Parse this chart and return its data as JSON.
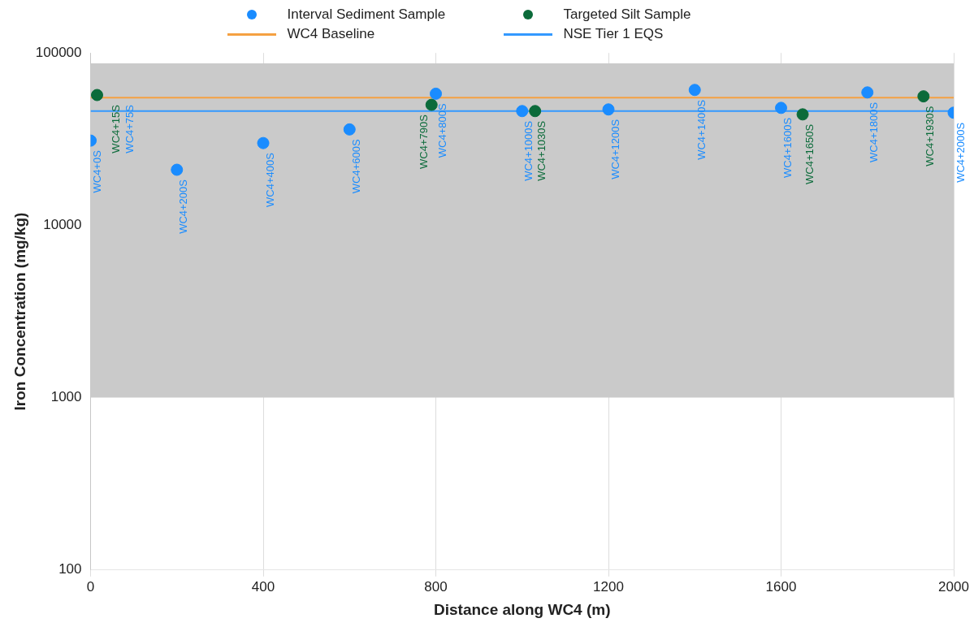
{
  "chart_data": {
    "type": "scatter",
    "xlabel": "Distance along WC4 (m)",
    "ylabel": "Iron Concentration (mg/kg)",
    "xlim": [
      0,
      2000
    ],
    "xticks": [
      0,
      400,
      800,
      1200,
      1600,
      2000
    ],
    "ylim": [
      100,
      100000
    ],
    "yticks": [
      100,
      1000,
      10000,
      100000
    ],
    "log": "y",
    "grid": "x",
    "legend": "top",
    "marker": "circle",
    "series": [
      {
        "name": "Interval Sediment Sample",
        "color": "#1a8cff",
        "x": [
          0,
          200,
          400,
          600,
          800,
          1000,
          1200,
          1400,
          1600,
          1800,
          2000
        ],
        "values": [
          31000,
          21000,
          30000,
          36000,
          58000,
          46000,
          47000,
          61000,
          48000,
          59000,
          45000
        ],
        "value_labels": [
          "WC4+0S",
          "WC4+200S",
          "WC4+400S",
          "WC4+600S",
          "WC4+800S",
          "WC4+1000S",
          "WC4+1200S",
          "WC4+1400S",
          "WC4+1600S",
          "WC4+1800S",
          "WC4+2000S"
        ]
      },
      {
        "name": "Targeted Silt Sample",
        "color": "#0b6b3a",
        "x": [
          15,
          790,
          1030,
          1650,
          1930
        ],
        "values": [
          57000,
          50000,
          46000,
          44000,
          56000
        ],
        "value_labels": [
          "WC4+15S",
          "WC4+790S",
          "WC4+1030S",
          "WC4+1650S",
          "WC4+1930S"
        ]
      }
    ],
    "ref_lines": [
      {
        "axis": "y",
        "value": 55000,
        "label": "WC4 Baseline",
        "color": "#f5a142"
      },
      {
        "axis": "y",
        "value": 46000,
        "label": "NSE Tier 1 EQS",
        "color": "#3399ff"
      }
    ],
    "bands": [
      {
        "axis": "y",
        "from": 1000,
        "to": 87000,
        "color": "#cacaca"
      }
    ],
    "annotations": [
      {
        "text": "WC4+75S",
        "x": 75,
        "y": 57000
      }
    ]
  }
}
